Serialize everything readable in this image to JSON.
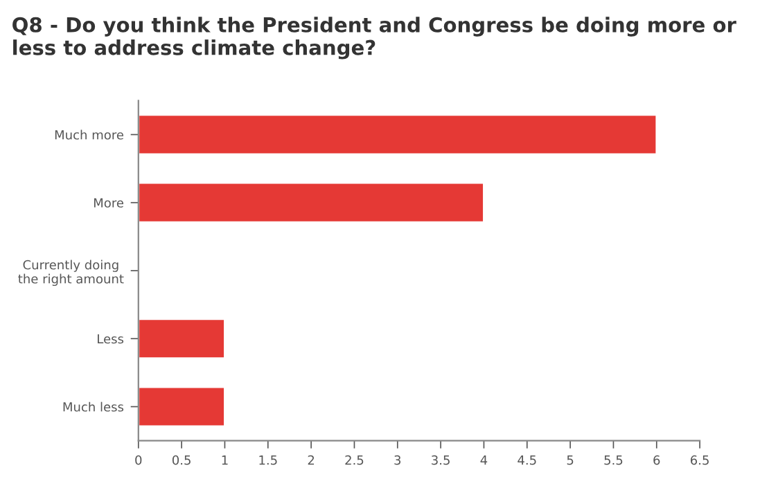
{
  "chart_data": {
    "type": "bar",
    "orientation": "horizontal",
    "title": "Q8 - Do you think the President and Congress be doing more or less to address climate change?",
    "categories": [
      "Much more",
      "More",
      "Currently doing\nthe right amount",
      "Less",
      "Much less"
    ],
    "values": [
      6,
      4,
      null,
      1,
      1
    ],
    "color": "#e53935",
    "xlim": [
      0,
      6.5
    ],
    "xticks": [
      0,
      0.5,
      1,
      1.5,
      2,
      2.5,
      3,
      3.5,
      4,
      4.5,
      5,
      5.5,
      6,
      6.5
    ],
    "grid": false,
    "legend": false
  }
}
